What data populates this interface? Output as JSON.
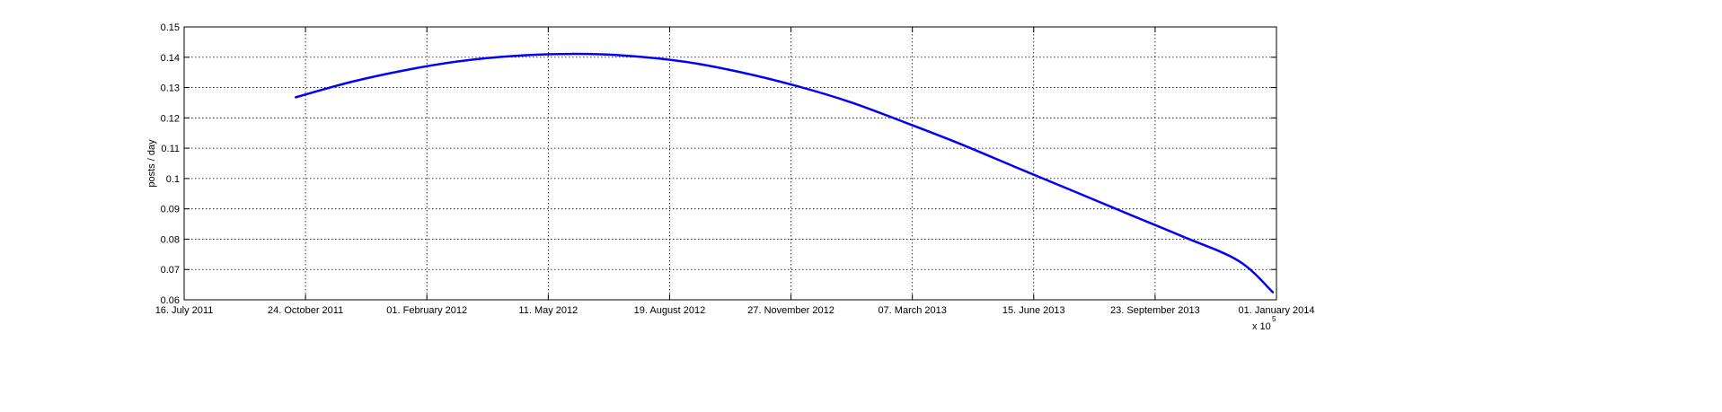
{
  "chart_data": {
    "type": "line",
    "ylabel": "posts / day",
    "xlabel": "",
    "title": "",
    "ylim": [
      0.06,
      0.15
    ],
    "yticks": [
      "0.06",
      "0.07",
      "0.08",
      "0.09",
      "0.1",
      "0.11",
      "0.12",
      "0.13",
      "0.14",
      "0.15"
    ],
    "xlim": [
      "2011-07-16",
      "2014-01-01"
    ],
    "xticks": [
      {
        "date": "2011-07-16",
        "label": "16. July 2011"
      },
      {
        "date": "2011-10-24",
        "label": "24. October 2011"
      },
      {
        "date": "2012-02-01",
        "label": "01. February 2012"
      },
      {
        "date": "2012-05-11",
        "label": "11. May 2012"
      },
      {
        "date": "2012-08-19",
        "label": "19. August 2012"
      },
      {
        "date": "2012-11-27",
        "label": "27. November 2012"
      },
      {
        "date": "2013-03-07",
        "label": "07. March 2013"
      },
      {
        "date": "2013-06-15",
        "label": "15. June 2013"
      },
      {
        "date": "2013-09-23",
        "label": "23. September 2013"
      },
      {
        "date": "2014-01-01",
        "label": "01. January 2014"
      }
    ],
    "x_multiplier_label": "x 10",
    "x_multiplier_exponent": "5",
    "grid": true,
    "series": [
      {
        "color": "#0000ff",
        "x": [
          "2011-10-16",
          "2011-12-01",
          "2012-01-15",
          "2012-03-01",
          "2012-04-15",
          "2012-06-01",
          "2012-07-15",
          "2012-09-01",
          "2012-10-15",
          "2012-12-01",
          "2013-01-15",
          "2013-03-01",
          "2013-04-15",
          "2013-06-01",
          "2013-07-15",
          "2013-09-01",
          "2013-10-15",
          "2013-12-01",
          "2013-12-29"
        ],
        "y": [
          0.1268,
          0.1319,
          0.1358,
          0.1388,
          0.1405,
          0.1411,
          0.1405,
          0.1385,
          0.1352,
          0.1306,
          0.1252,
          0.1185,
          0.1115,
          0.1036,
          0.0963,
          0.0883,
          0.081,
          0.0728,
          0.0625
        ]
      }
    ]
  }
}
